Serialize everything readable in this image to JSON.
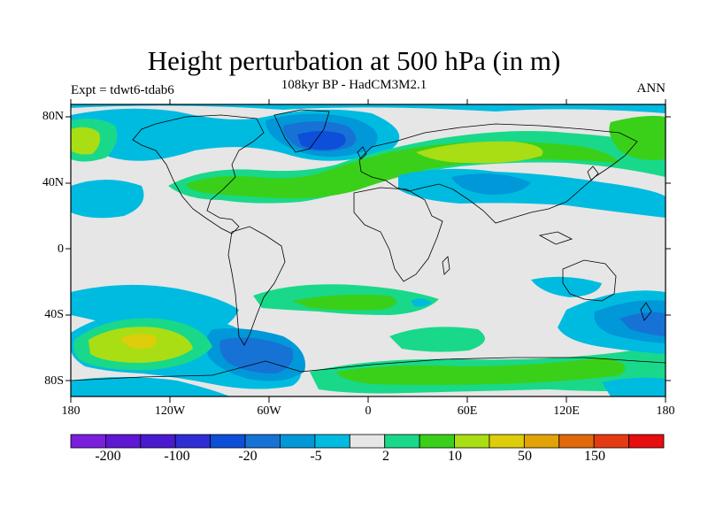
{
  "title": "Height perturbation at 500 hPa (in m)",
  "subtitle": "108kyr BP - HadCM3M2.1",
  "left_label": "Expt = tdwt6-tdab6",
  "right_label": "ANN",
  "lat_ticks": [
    "80N",
    "40N",
    "0",
    "40S",
    "80S"
  ],
  "lon_ticks": [
    "180",
    "120W",
    "60W",
    "0",
    "60E",
    "120E",
    "180"
  ],
  "colorbar": {
    "colors": [
      "#7a1fdc",
      "#5e17d2",
      "#4a1ad0",
      "#2f2ed6",
      "#0d4fd8",
      "#1772d6",
      "#0098d8",
      "#00bbe0",
      "#e6e6e6",
      "#19d88a",
      "#3ad01a",
      "#a9de14",
      "#ddcd0a",
      "#e2a308",
      "#e0690a",
      "#e43a14",
      "#e60e0e"
    ],
    "labels": [
      "-200",
      "-100",
      "-20",
      "-5",
      "2",
      "10",
      "50",
      "150"
    ]
  },
  "map_colors": {
    "background": "#e6e6e6",
    "neg_light": "#00bbe0",
    "neg_mid": "#0098d8",
    "neg_strong": "#1772d6",
    "neg_deep": "#0d4fd8",
    "pos_light": "#19d88a",
    "pos_mid": "#3ad01a",
    "pos_strong": "#a9de14",
    "pos_peak": "#ddcd0a",
    "coast": "#000000"
  }
}
